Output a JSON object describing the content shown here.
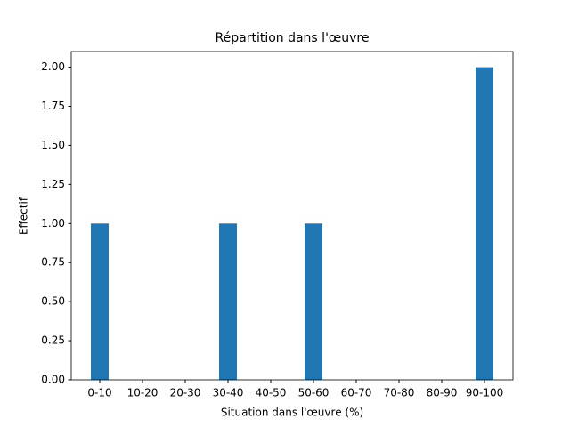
{
  "chart_data": {
    "type": "bar",
    "title": "Répartition dans l'œuvre",
    "x_label": "Situation dans l'œuvre (%)",
    "y_label": "Effectif",
    "categories": [
      "0-10",
      "10-20",
      "20-30",
      "30-40",
      "40-50",
      "50-60",
      "60-70",
      "70-80",
      "80-90",
      "90-100"
    ],
    "values": [
      1,
      0,
      0,
      1,
      0,
      1,
      0,
      0,
      0,
      2
    ],
    "color": "#1f77b4",
    "ylim": [
      0,
      2.1
    ],
    "yticks": [
      {
        "value": 0,
        "label": "0.00"
      },
      {
        "value": 0.25,
        "label": "0.25"
      },
      {
        "value": 0.5,
        "label": "0.50"
      },
      {
        "value": 0.75,
        "label": "0.75"
      },
      {
        "value": 1,
        "label": "1.00"
      },
      {
        "value": 1.25,
        "label": "1.25"
      },
      {
        "value": 1.5,
        "label": "1.50"
      },
      {
        "value": 1.75,
        "label": "1.75"
      },
      {
        "value": 2,
        "label": "2.00"
      }
    ],
    "grid": false
  }
}
